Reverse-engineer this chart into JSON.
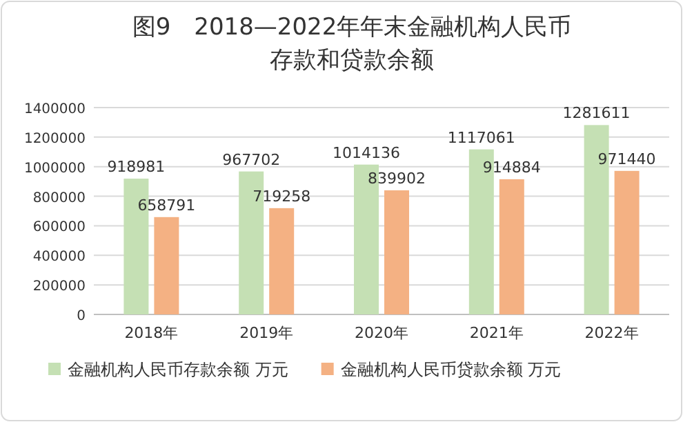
{
  "chart_data": {
    "type": "bar",
    "title": "图9　2018—2022年年末金融机构人民币存款和贷款余额",
    "categories": [
      "2018年",
      "2019年",
      "2020年",
      "2021年",
      "2022年"
    ],
    "series": [
      {
        "name": "金融机构人民币存款余额 万元",
        "color": "#c5e0b4",
        "values": [
          918981,
          967702,
          1014136,
          1117061,
          1281611
        ]
      },
      {
        "name": "金融机构人民币贷款余额 万元",
        "color": "#f4b183",
        "values": [
          658791,
          719258,
          839902,
          914884,
          971440
        ]
      }
    ],
    "ylim": [
      0,
      1400000
    ],
    "yticks": [
      0,
      200000,
      400000,
      600000,
      800000,
      1000000,
      1200000,
      1400000
    ],
    "grid": "y",
    "legend": "bottom",
    "data_labels": true
  }
}
